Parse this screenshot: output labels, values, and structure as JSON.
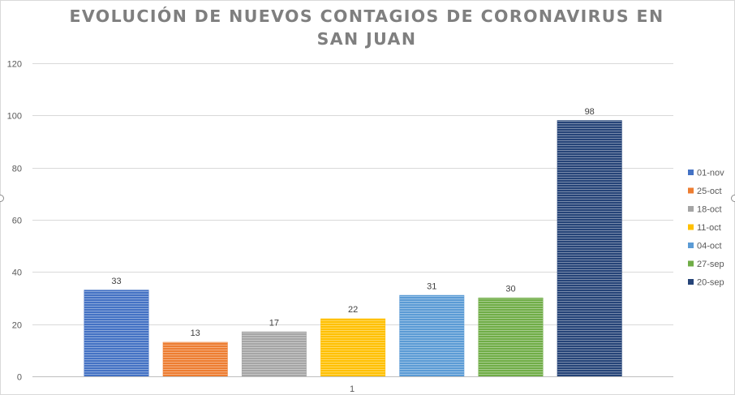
{
  "chart_data": {
    "type": "bar",
    "title_lines": [
      "EVOLUCIÓN DE NUEVOS CONTAGIOS DE CORONAVIRUS EN",
      "SAN JUAN"
    ],
    "categories": [
      "1"
    ],
    "ylim": [
      0,
      120
    ],
    "yticks": [
      0,
      20,
      40,
      60,
      80,
      100,
      120
    ],
    "grid": true,
    "legend_position": "right",
    "data_labels": true,
    "series": [
      {
        "name": "01-nov",
        "values": [
          33
        ],
        "color": "#4472c4"
      },
      {
        "name": "25-oct",
        "values": [
          13
        ],
        "color": "#ed7d31"
      },
      {
        "name": "18-oct",
        "values": [
          17
        ],
        "color": "#a5a5a5"
      },
      {
        "name": "11-oct",
        "values": [
          22
        ],
        "color": "#ffc000"
      },
      {
        "name": "04-oct",
        "values": [
          31
        ],
        "color": "#5b9bd5"
      },
      {
        "name": "27-sep",
        "values": [
          30
        ],
        "color": "#70ad47"
      },
      {
        "name": "20-sep",
        "values": [
          98
        ],
        "color": "#264478"
      }
    ]
  }
}
